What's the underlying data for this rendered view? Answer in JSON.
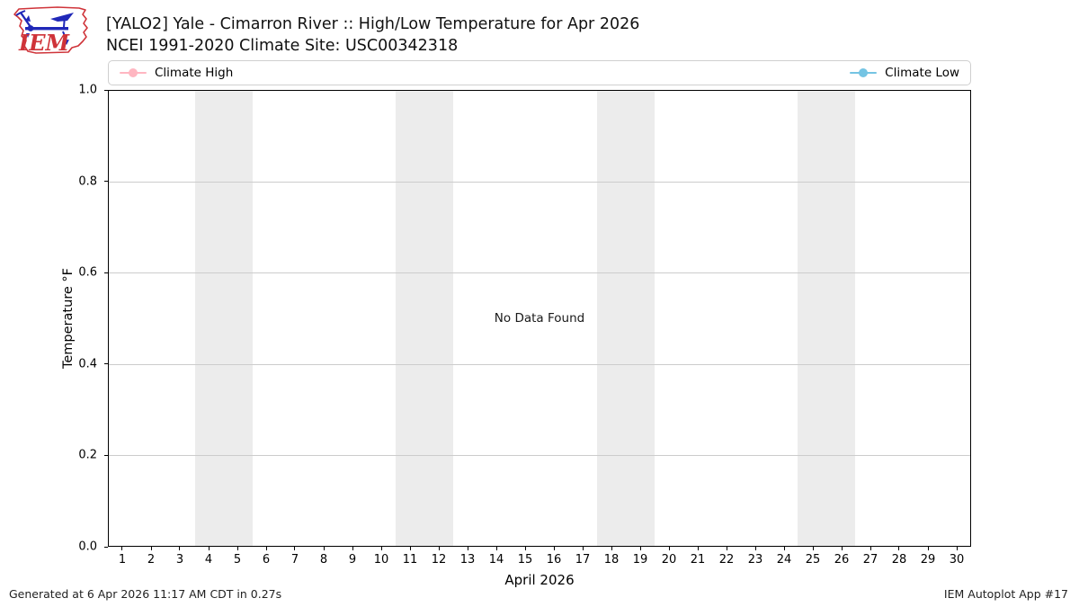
{
  "header": {
    "logo_text": "IEM",
    "title_line1": "[YALO2] Yale - Cimarron River :: High/Low Temperature for Apr 2026",
    "title_line2": "NCEI 1991-2020 Climate Site: USC00342318"
  },
  "legend": {
    "entries": [
      {
        "label": "Climate High",
        "color": "#ffb6c1"
      },
      {
        "label": "Climate Low",
        "color": "#74c4e3"
      }
    ]
  },
  "plot": {
    "no_data_text": "No Data Found",
    "weekend_band_color": "#ececec",
    "weekend_bands": [
      [
        3.5,
        5.5
      ],
      [
        10.5,
        12.5
      ],
      [
        17.5,
        19.5
      ],
      [
        24.5,
        26.5
      ]
    ],
    "gridline_color": "#cccccc"
  },
  "axes": {
    "x": {
      "label": "April 2026",
      "lim": [
        0.5,
        30.5
      ],
      "ticks": [
        1,
        2,
        3,
        4,
        5,
        6,
        7,
        8,
        9,
        10,
        11,
        12,
        13,
        14,
        15,
        16,
        17,
        18,
        19,
        20,
        21,
        22,
        23,
        24,
        25,
        26,
        27,
        28,
        29,
        30
      ]
    },
    "y": {
      "label": "Temperature °F",
      "lim": [
        0.0,
        1.0
      ],
      "ticks": [
        "0.0",
        "0.2",
        "0.4",
        "0.6",
        "0.8",
        "1.0"
      ],
      "grid_values": [
        0.2,
        0.4,
        0.6,
        0.8
      ]
    }
  },
  "footer": {
    "left": "Generated at 6 Apr 2026 11:17 AM CDT in 0.27s",
    "right": "IEM Autoplot App #17"
  },
  "chart_data": {
    "type": "line",
    "title": "[YALO2] Yale - Cimarron River :: High/Low Temperature for Apr 2026",
    "subtitle": "NCEI 1991-2020 Climate Site: USC00342318",
    "xlabel": "April 2026",
    "ylabel": "Temperature °F",
    "xlim": [
      0.5,
      30.5
    ],
    "ylim": [
      0.0,
      1.0
    ],
    "x_ticks": [
      1,
      2,
      3,
      4,
      5,
      6,
      7,
      8,
      9,
      10,
      11,
      12,
      13,
      14,
      15,
      16,
      17,
      18,
      19,
      20,
      21,
      22,
      23,
      24,
      25,
      26,
      27,
      28,
      29,
      30
    ],
    "y_ticks": [
      0.0,
      0.2,
      0.4,
      0.6,
      0.8,
      1.0
    ],
    "grid": "horizontal",
    "legend_position": "top strip spanning plot width, entries at left and right",
    "series": [
      {
        "name": "Climate High",
        "color": "#ffb6c1",
        "x": [],
        "values": []
      },
      {
        "name": "Climate Low",
        "color": "#74c4e3",
        "x": [],
        "values": []
      }
    ],
    "annotations": [
      "No Data Found"
    ],
    "weekend_shading_days": [
      [
        4,
        5
      ],
      [
        11,
        12
      ],
      [
        18,
        19
      ],
      [
        25,
        26
      ]
    ]
  }
}
